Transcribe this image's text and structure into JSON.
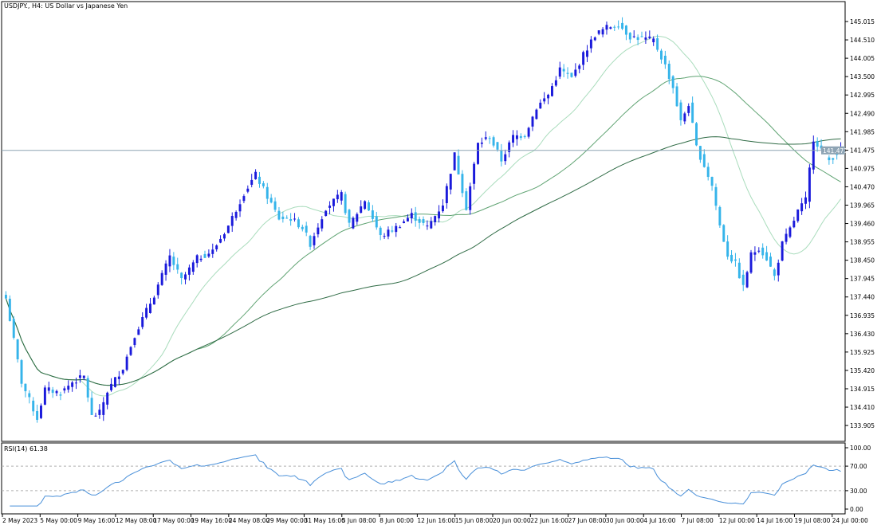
{
  "header": {
    "symbol": "USDJPY.",
    "timeframe": "H4",
    "description": "US Dollar vs Japanese Yen",
    "title_text": "USDJPY., H4:  US Dollar vs Japanese Yen"
  },
  "colors": {
    "bull_candle": "#1a1adb",
    "bear_candle": "#35b4ea",
    "ma_fast": "#a9dcbc",
    "ma_mid": "#5fa372",
    "ma_slow": "#2f6b45",
    "rsi_line": "#4a90d9",
    "price_line": "#8ea4b4",
    "price_label_bg": "#8ea4b4",
    "axis": "#000000"
  },
  "rsi": {
    "label": "RSI(14) 61.38",
    "period": 14,
    "value": 61.38
  },
  "chart_data": [
    {
      "type": "candlestick",
      "x_ticks": [
        "2 May 2023",
        "5 May 00:00",
        "9 May 16:00",
        "12 May 08:00",
        "17 May 00:00",
        "19 May 16:00",
        "24 May 08:00",
        "29 May 00:00",
        "31 May 16:00",
        "5 Jun 08:00",
        "8 Jun 00:00",
        "12 Jun 16:00",
        "15 Jun 08:00",
        "20 Jun 00:00",
        "22 Jun 16:00",
        "27 Jun 08:00",
        "30 Jun 00:00",
        "4 Jul 16:00",
        "7 Jul 08:00",
        "12 Jul 00:00",
        "14 Jul 16:00",
        "19 Jul 08:00",
        "24 Jul 00:00"
      ],
      "y_ticks": [
        "145.015",
        "144.510",
        "144.005",
        "143.500",
        "142.995",
        "142.490",
        "141.985",
        "141.475",
        "140.975",
        "140.470",
        "139.965",
        "139.460",
        "138.955",
        "138.450",
        "137.945",
        "137.440",
        "136.935",
        "136.430",
        "135.925",
        "135.420",
        "134.915",
        "134.410",
        "133.905"
      ],
      "ylim": [
        133.6,
        145.3
      ],
      "current_price": "141.471",
      "close_path": [
        [
          0,
          137.4
        ],
        [
          4,
          135.1
        ],
        [
          8,
          134.1
        ],
        [
          10,
          134.9
        ],
        [
          14,
          134.8
        ],
        [
          17,
          135.1
        ],
        [
          20,
          135.25
        ],
        [
          22,
          134.15
        ],
        [
          24,
          134.25
        ],
        [
          26,
          134.85
        ],
        [
          30,
          135.5
        ],
        [
          33,
          136.4
        ],
        [
          38,
          137.5
        ],
        [
          42,
          138.55
        ],
        [
          45,
          137.9
        ],
        [
          49,
          138.5
        ],
        [
          53,
          138.7
        ],
        [
          57,
          139.4
        ],
        [
          61,
          140.3
        ],
        [
          64,
          140.8
        ],
        [
          67,
          140.2
        ],
        [
          70,
          139.6
        ],
        [
          73,
          139.6
        ],
        [
          76,
          139.35
        ],
        [
          78,
          138.9
        ],
        [
          82,
          139.9
        ],
        [
          86,
          140.25
        ],
        [
          88,
          139.4
        ],
        [
          92,
          140.1
        ],
        [
          96,
          139.1
        ],
        [
          100,
          139.35
        ],
        [
          104,
          139.7
        ],
        [
          108,
          139.35
        ],
        [
          112,
          140.0
        ],
        [
          115,
          141.35
        ],
        [
          118,
          139.9
        ],
        [
          121,
          141.65
        ],
        [
          124,
          141.85
        ],
        [
          127,
          141.2
        ],
        [
          130,
          141.85
        ],
        [
          133,
          141.9
        ],
        [
          136,
          142.65
        ],
        [
          139,
          143.0
        ],
        [
          142,
          143.7
        ],
        [
          145,
          143.45
        ],
        [
          148,
          144.1
        ],
        [
          151,
          144.65
        ],
        [
          154,
          144.85
        ],
        [
          157,
          144.95
        ],
        [
          160,
          144.6
        ],
        [
          163,
          144.55
        ],
        [
          166,
          144.5
        ],
        [
          169,
          143.8
        ],
        [
          171,
          143.2
        ],
        [
          173,
          142.25
        ],
        [
          175,
          142.75
        ],
        [
          177,
          141.55
        ],
        [
          179,
          141.05
        ],
        [
          181,
          140.5
        ],
        [
          183,
          139.4
        ],
        [
          185,
          138.6
        ],
        [
          187,
          138.35
        ],
        [
          189,
          137.7
        ],
        [
          191,
          138.6
        ],
        [
          193,
          138.8
        ],
        [
          195,
          138.5
        ],
        [
          197,
          138.0
        ],
        [
          199,
          138.9
        ],
        [
          201,
          139.3
        ],
        [
          203,
          139.8
        ],
        [
          205,
          140.1
        ],
        [
          207,
          141.8
        ],
        [
          209,
          141.5
        ],
        [
          211,
          141.2
        ],
        [
          213,
          141.4
        ],
        [
          214,
          141.47
        ]
      ],
      "ma_smoothing_periods": [
        20,
        50,
        100
      ]
    },
    {
      "type": "line",
      "name": "RSI(14) 61.38",
      "y_ticks": [
        "100.00",
        "70.00",
        "30.00",
        "0.00"
      ],
      "ylim": [
        0,
        100
      ],
      "levels": [
        70,
        30
      ],
      "last_value": 61.38
    }
  ]
}
